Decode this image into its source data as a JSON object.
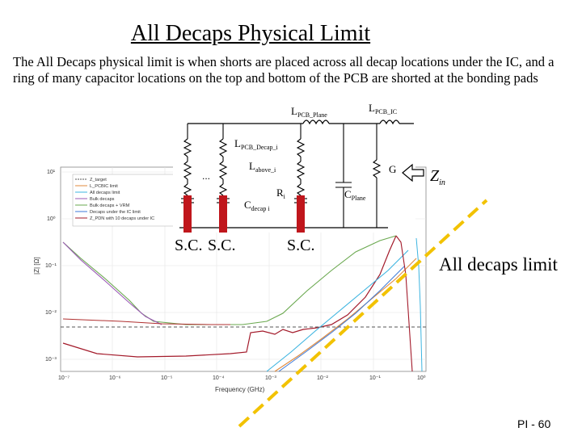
{
  "slide": {
    "title": "All Decaps Physical Limit",
    "body": "The All Decaps physical limit is when shorts are placed across all decap locations under the IC, and a ring of many capacitor locations on the top and bottom of the PCB are shorted at the bonding pads",
    "footer": "PI - 60"
  },
  "annotations": {
    "sc_labels": [
      "S.C.",
      "S.C.",
      "S.C."
    ],
    "all_decaps_label": "All decaps limit"
  },
  "schematic": {
    "L_pcb_plane": "L",
    "L_pcb_plane_sub": "PCB_Plane",
    "L_pcb_ic": "L",
    "L_pcb_ic_sub": "PCB_IC",
    "L_decap": "L",
    "L_decap_sub": "PCB_Decap_i",
    "L_above": "L",
    "L_above_sub": "above_i",
    "R_i": "R",
    "R_i_sub": "i",
    "C_decap": "C",
    "C_decap_sub": "decap i",
    "C_plane": "C",
    "C_plane_sub": "Plane",
    "G": "G",
    "Zin": "Z",
    "Zin_sub": "in",
    "dots": "..."
  },
  "plot": {
    "xlabel": "Frequency (GHz)",
    "ylabel": "|Z| [Ω]",
    "x_ticks": [
      "10⁻⁷",
      "10⁻⁶",
      "10⁻⁵",
      "10⁻⁴",
      "10⁻³",
      "10⁻²",
      "10⁻¹",
      "10⁰"
    ],
    "y_ticks": [
      "10¹",
      "10⁰",
      "10⁻¹",
      "10⁻²",
      "10⁻³"
    ],
    "legend": [
      "Z_target",
      "L_PCBIC limit",
      "All decaps limit",
      "Bulk decaps",
      "Bulk decaps + VRM",
      "Decaps under the IC limit",
      "Z_PDN with 10 decaps under IC"
    ],
    "colors": {
      "target": "#555555",
      "pcbic_limit": "#e08a3c",
      "all_decaps": "#3cb4e0",
      "bulk": "#9b59b6",
      "bulk_vrm": "#6aa84f",
      "under_ic": "#3c78d8",
      "zpdn": "#a31a2a",
      "dashed_limit": "#f2c200",
      "short": "#c0161c"
    }
  }
}
